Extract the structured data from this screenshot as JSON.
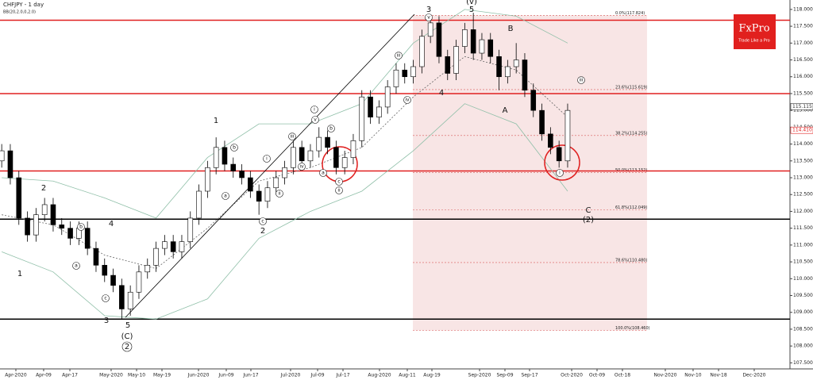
{
  "chart_data": {
    "type": "candlestick",
    "title": "CHFJPY - 1 day",
    "subtitle": "BB(20,2.0,0,2.0)",
    "xlim": [
      -0.2,
      91.93
    ],
    "xticks": [
      {
        "value": 1.65,
        "label": "Apr-2020"
      },
      {
        "value": 4.89,
        "label": "Apr-09"
      },
      {
        "value": 7.95,
        "label": "Apr-17"
      },
      {
        "value": 12.76,
        "label": "May-2020"
      },
      {
        "value": 15.73,
        "label": "May-10"
      },
      {
        "value": 18.69,
        "label": "May-19"
      },
      {
        "value": 22.95,
        "label": "Jun-2020"
      },
      {
        "value": 26.19,
        "label": "Jun-09"
      },
      {
        "value": 29.06,
        "label": "Jun-17"
      },
      {
        "value": 33.69,
        "label": "Jul-2020"
      },
      {
        "value": 36.84,
        "label": "Jul-09"
      },
      {
        "value": 39.8,
        "label": "Jul-17"
      },
      {
        "value": 44.06,
        "label": "Aug-2020"
      },
      {
        "value": 47.3,
        "label": "Aug-11"
      },
      {
        "value": 50.17,
        "label": "Aug-19"
      },
      {
        "value": 55.73,
        "label": "Sep-2020"
      },
      {
        "value": 58.69,
        "label": "Sep-09"
      },
      {
        "value": 61.56,
        "label": "Sep-17"
      },
      {
        "value": 66.47,
        "label": "Oct-2020"
      },
      {
        "value": 69.43,
        "label": "Oct-09"
      },
      {
        "value": 72.39,
        "label": "Oct-18"
      },
      {
        "value": 77.39,
        "label": "Nov-2020"
      },
      {
        "value": 80.63,
        "label": "Nov-10"
      },
      {
        "value": 83.6,
        "label": "Nov-18"
      },
      {
        "value": 87.76,
        "label": "Dec-2020"
      }
    ],
    "ylim": [
      107.32,
      118.28
    ],
    "yticks": [
      {
        "value": 107.5,
        "label": "107.500"
      },
      {
        "value": 108,
        "label": "108.000"
      },
      {
        "value": 108.5,
        "label": "108.500"
      },
      {
        "value": 109,
        "label": "109.000"
      },
      {
        "value": 109.5,
        "label": "109.500"
      },
      {
        "value": 110,
        "label": "110.000"
      },
      {
        "value": 110.5,
        "label": "110.500"
      },
      {
        "value": 111,
        "label": "111.000"
      },
      {
        "value": 111.5,
        "label": "111.500"
      },
      {
        "value": 112,
        "label": "112.000"
      },
      {
        "value": 112.5,
        "label": "112.500"
      },
      {
        "value": 113,
        "label": "113.000"
      },
      {
        "value": 113.5,
        "label": "113.500"
      },
      {
        "value": 114,
        "label": "114.000"
      },
      {
        "value": 114.5,
        "label": "114.500"
      },
      {
        "value": 115,
        "label": "115.000"
      },
      {
        "value": 115.5,
        "label": "115.500"
      },
      {
        "value": 116,
        "label": "116.000"
      },
      {
        "value": 116.5,
        "label": "116.500"
      },
      {
        "value": 117,
        "label": "117.000"
      },
      {
        "value": 117.5,
        "label": "117.500"
      },
      {
        "value": 118,
        "label": "118.000"
      }
    ],
    "open": [
      113.5,
      113.8,
      113.0,
      111.8,
      111.3,
      111.9,
      112.2,
      111.6,
      111.5,
      111.2,
      111.5,
      110.9,
      110.4,
      110.1,
      109.8,
      109.1,
      109.6,
      110.2,
      110.4,
      110.9,
      111.1,
      110.8,
      111.1,
      111.8,
      112.6,
      113.3,
      113.9,
      113.4,
      113.2,
      113.0,
      112.6,
      112.3,
      112.7,
      113.0,
      113.3,
      113.9,
      113.5,
      113.8,
      114.2,
      113.9,
      113.3,
      113.6,
      114.1,
      115.4,
      114.8,
      115.1,
      115.7,
      116.2,
      116.0,
      116.3,
      117.2,
      117.6,
      116.6,
      116.1,
      116.9,
      117.4,
      116.7,
      117.1,
      116.6,
      116.0,
      116.3,
      116.5,
      115.6,
      115.0,
      114.3,
      113.9,
      113.5
    ],
    "high": [
      114.0,
      114.0,
      113.2,
      112.0,
      112.1,
      112.4,
      112.4,
      111.8,
      111.7,
      111.7,
      111.7,
      111.1,
      110.6,
      110.3,
      110.0,
      109.8,
      110.4,
      110.6,
      111.1,
      111.3,
      111.3,
      111.3,
      112.0,
      112.8,
      113.5,
      114.2,
      114.1,
      113.6,
      113.4,
      113.2,
      112.8,
      112.9,
      113.2,
      113.5,
      114.1,
      114.1,
      114.0,
      114.5,
      114.4,
      114.1,
      113.8,
      114.3,
      115.6,
      115.6,
      115.3,
      115.9,
      116.4,
      116.4,
      116.5,
      117.4,
      117.8,
      117.8,
      116.8,
      117.1,
      117.6,
      117.9,
      117.3,
      117.3,
      116.8,
      116.5,
      117.0,
      116.7,
      115.8,
      115.2,
      114.5,
      114.1,
      115.2
    ],
    "low": [
      113.3,
      112.8,
      111.6,
      111.1,
      111.1,
      111.7,
      111.4,
      111.3,
      111.0,
      111.0,
      110.7,
      110.2,
      109.9,
      109.6,
      108.8,
      108.9,
      109.4,
      110.0,
      110.2,
      110.7,
      110.6,
      110.6,
      110.9,
      111.6,
      112.4,
      113.1,
      113.2,
      113.0,
      112.8,
      112.4,
      111.9,
      112.1,
      112.5,
      112.8,
      113.1,
      113.3,
      113.3,
      113.6,
      113.7,
      113.1,
      113.1,
      113.4,
      113.9,
      114.6,
      114.6,
      114.9,
      115.5,
      115.8,
      115.8,
      116.1,
      117.0,
      116.4,
      115.9,
      115.9,
      116.7,
      116.5,
      116.5,
      116.4,
      115.6,
      115.8,
      116.1,
      115.4,
      114.8,
      114.1,
      113.7,
      113.3,
      113.3
    ],
    "close": [
      113.8,
      113.0,
      111.8,
      111.3,
      111.9,
      112.2,
      111.6,
      111.5,
      111.2,
      111.5,
      110.9,
      110.4,
      110.1,
      109.8,
      109.1,
      109.6,
      110.2,
      110.4,
      110.9,
      111.1,
      110.8,
      111.1,
      111.8,
      112.6,
      113.3,
      113.9,
      113.4,
      113.2,
      113.0,
      112.6,
      112.3,
      112.7,
      113.0,
      113.3,
      113.9,
      113.5,
      113.8,
      114.2,
      113.9,
      113.3,
      113.6,
      114.1,
      115.4,
      114.8,
      115.1,
      115.7,
      116.2,
      116.0,
      116.3,
      117.2,
      117.6,
      116.6,
      116.1,
      116.9,
      117.4,
      116.7,
      117.1,
      116.6,
      116.0,
      116.3,
      116.5,
      115.6,
      115.0,
      114.3,
      113.9,
      113.5,
      115.0
    ],
    "up_color": "#ffffff",
    "down_color": "#000000",
    "bb": {
      "color": "#8fbfa8",
      "x": [
        0,
        6,
        12,
        18,
        24,
        30,
        36,
        42,
        48,
        54,
        60,
        66
      ],
      "upper": [
        113.0,
        112.9,
        112.4,
        111.8,
        113.6,
        114.6,
        114.6,
        115.2,
        117.0,
        118.0,
        117.8,
        117.0
      ],
      "middle": [
        111.9,
        111.6,
        110.7,
        110.3,
        111.5,
        112.9,
        113.3,
        113.9,
        115.4,
        116.6,
        116.2,
        114.8
      ],
      "lower": [
        110.8,
        110.2,
        108.9,
        108.8,
        109.4,
        111.2,
        112.0,
        112.6,
        113.8,
        115.2,
        114.6,
        112.6
      ]
    },
    "levels": [
      {
        "value": 117.68,
        "color": "#e02020"
      },
      {
        "value": 115.5,
        "color": "#e02020"
      },
      {
        "value": 113.2,
        "color": "#e02020"
      },
      {
        "value": 111.77,
        "color": "#000000"
      },
      {
        "value": 108.8,
        "color": "#000000"
      }
    ],
    "fib": {
      "start": 47.95,
      "end": 75.26,
      "color": "#f6dede",
      "line_color": "#d65a5a",
      "levels": [
        {
          "value": 117.824,
          "label": "0.0%(117.824)"
        },
        {
          "value": 115.619,
          "label": "23.6%(115.619)"
        },
        {
          "value": 114.255,
          "label": "38.2%(114.255)"
        },
        {
          "value": 113.152,
          "label": "50.0%(113.152)"
        },
        {
          "value": 112.049,
          "label": "61.8%(112.049)"
        },
        {
          "value": 110.48,
          "label": "78.6%(110.480)"
        },
        {
          "value": 108.46,
          "label": "100.0%(108.460)"
        }
      ]
    },
    "price_tags": [
      {
        "value": 115.115,
        "label": "115.115",
        "color": "#333333"
      },
      {
        "value": 114.41,
        "label": "114.410",
        "color": "#e02020"
      }
    ],
    "annotations": [
      "1",
      "2",
      "4",
      "3",
      "5",
      "(C)",
      "2",
      "a",
      "b",
      "c",
      "1",
      "2",
      "a",
      "b",
      "c",
      "i",
      "ii",
      "iii",
      "iv",
      "v",
      "i",
      "b",
      "a",
      "c",
      "ii",
      "iii",
      "iv",
      "3",
      "v",
      "4",
      "5",
      "(v)",
      "B",
      "A",
      "i",
      "iii",
      "C",
      "(2)"
    ],
    "logo": {
      "name": "FxPro",
      "slogan": "Trade Like a Pro"
    }
  }
}
